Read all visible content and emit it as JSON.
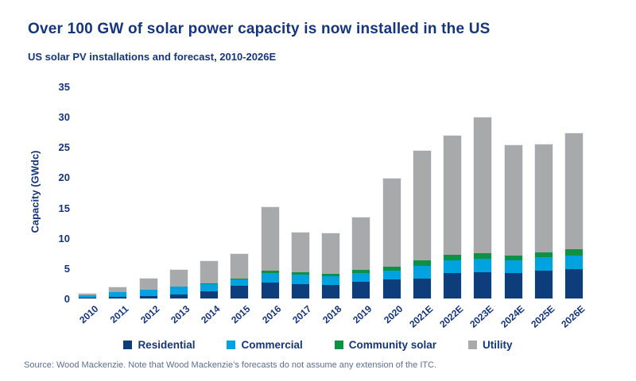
{
  "page": {
    "title": "Over 100 GW of solar power capacity is now installed in the US",
    "subtitle": "US solar PV installations and forecast, 2010-2026E",
    "source_note": "Source: Wood Mackenzie. Note that Wood Mackenzie’s forecasts do not assume any extension of the ITC."
  },
  "colors": {
    "title_text": "#15357E",
    "axis_text": "#15357E",
    "source_text": "#5E6F91",
    "residential": "#0E3D7B",
    "commercial": "#00A3E0",
    "community_solar": "#0E9144",
    "utility": "#A8A9AB"
  },
  "chart_data": {
    "type": "bar",
    "stacked": true,
    "title": "US solar PV installations and forecast, 2010-2026E",
    "xlabel": "",
    "ylabel": "Capacity (GWdc)",
    "ylim": [
      0,
      35
    ],
    "ytick_step": 5,
    "ytick_labels": [
      "0",
      "5",
      "10",
      "15",
      "20",
      "25",
      "30",
      "35"
    ],
    "grid": false,
    "legend_position": "bottom",
    "categories": [
      "2010",
      "2011",
      "2012",
      "2013",
      "2014",
      "2015",
      "2016",
      "2017",
      "2018",
      "2019",
      "2020",
      "2021E",
      "2022E",
      "2023E",
      "2024E",
      "2025E",
      "2026E"
    ],
    "series": [
      {
        "name": "Residential",
        "color_key": "residential",
        "values": [
          0.25,
          0.3,
          0.45,
          0.75,
          1.3,
          2.1,
          2.7,
          2.45,
          2.3,
          2.8,
          3.2,
          3.4,
          4.3,
          4.4,
          4.3,
          4.6,
          4.9
        ]
      },
      {
        "name": "Commercial",
        "color_key": "commercial",
        "values": [
          0.35,
          0.8,
          1.1,
          1.25,
          1.1,
          1.1,
          1.6,
          1.5,
          1.4,
          1.45,
          1.5,
          2.0,
          2.0,
          2.2,
          2.0,
          2.3,
          2.2
        ]
      },
      {
        "name": "Community solar",
        "color_key": "community_solar",
        "values": [
          0.0,
          0.0,
          0.0,
          0.0,
          0.1,
          0.15,
          0.3,
          0.4,
          0.4,
          0.55,
          0.6,
          1.0,
          0.95,
          1.0,
          0.8,
          0.75,
          1.05
        ]
      },
      {
        "name": "Utility",
        "color_key": "utility",
        "values": [
          0.2,
          0.8,
          1.8,
          2.75,
          3.7,
          4.05,
          10.5,
          6.65,
          6.7,
          8.7,
          14.6,
          18.0,
          19.65,
          22.3,
          18.3,
          17.9,
          19.2
        ]
      }
    ],
    "totals": [
      0.8,
      1.9,
      3.35,
      4.75,
      6.2,
      7.4,
      15.1,
      11.0,
      10.8,
      13.5,
      19.9,
      24.4,
      26.9,
      29.9,
      25.4,
      25.55,
      27.35
    ]
  }
}
